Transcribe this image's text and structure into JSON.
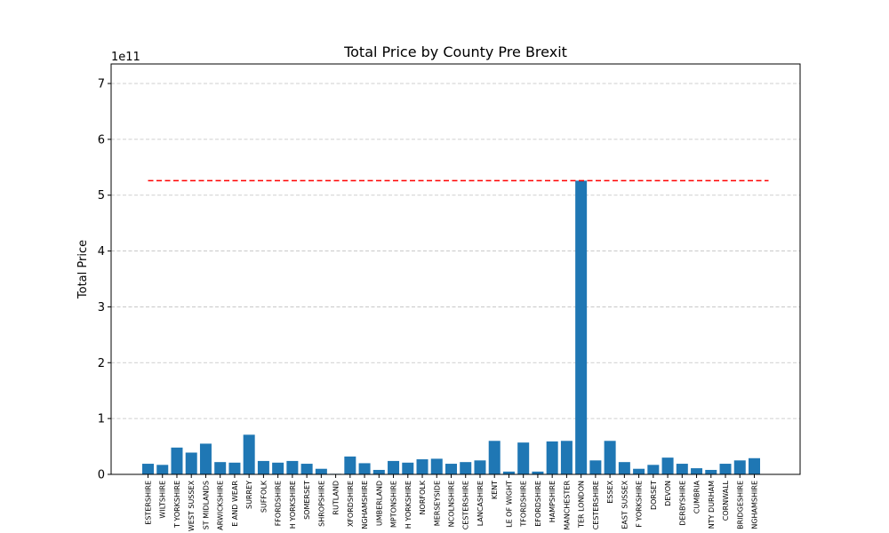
{
  "chart_data": {
    "type": "bar",
    "title": "Total Price by County Pre Brexit",
    "xlabel": "",
    "ylabel": "Total Price",
    "offset_text": "1e11",
    "ylim": [
      0,
      7.35
    ],
    "yticks": [
      0,
      1,
      2,
      3,
      4,
      5,
      6,
      7
    ],
    "y_unit_multiplier": "1e11",
    "grid": "y-dashed",
    "bar_color": "#1f77b4",
    "reference_line": {
      "value": 5.26,
      "color": "#ff0000",
      "style": "dashed"
    },
    "categories": [
      "ESTERSHIRE",
      "WILTSHIRE",
      "T YORKSHIRE",
      "WEST SUSSEX",
      "ST MIDLANDS",
      "ARWICKSHIRE",
      "E AND WEAR",
      "SURREY",
      "SUFFOLK",
      "FFORDSHIRE",
      "H YORKSHIRE",
      "SOMERSET",
      "SHROPSHIRE",
      "RUTLAND",
      "XFORDSHIRE",
      "NGHAMSHIRE",
      "UMBERLAND",
      "MPTONSHIRE",
      "H YORKSHIRE",
      "NORFOLK",
      "MERSEYSIDE",
      "NCOLNSHIRE",
      "CESTERSHIRE",
      "LANCASHIRE",
      "KENT",
      "LE OF WIGHT",
      "TFORDSHIRE",
      "EFORDSHIRE",
      "HAMPSHIRE",
      "MANCHESTER",
      "TER LONDON",
      "CESTERSHIRE",
      "ESSEX",
      "EAST SUSSEX",
      "F YORKSHIRE",
      "DORSET",
      "DEVON",
      "DERBYSHIRE",
      "CUMBRIA",
      "NTY DURHAM",
      "CORNWALL",
      "BRIDGESHIRE",
      "NGHAMSHIRE"
    ],
    "values": [
      0.19,
      0.17,
      0.48,
      0.39,
      0.55,
      0.22,
      0.21,
      0.71,
      0.24,
      0.21,
      0.24,
      0.19,
      0.1,
      0.01,
      0.32,
      0.2,
      0.08,
      0.24,
      0.21,
      0.27,
      0.28,
      0.19,
      0.22,
      0.25,
      0.6,
      0.05,
      0.57,
      0.05,
      0.59,
      0.6,
      5.26,
      0.25,
      0.6,
      0.22,
      0.1,
      0.17,
      0.3,
      0.19,
      0.11,
      0.08,
      0.19,
      0.25,
      0.29
    ]
  }
}
